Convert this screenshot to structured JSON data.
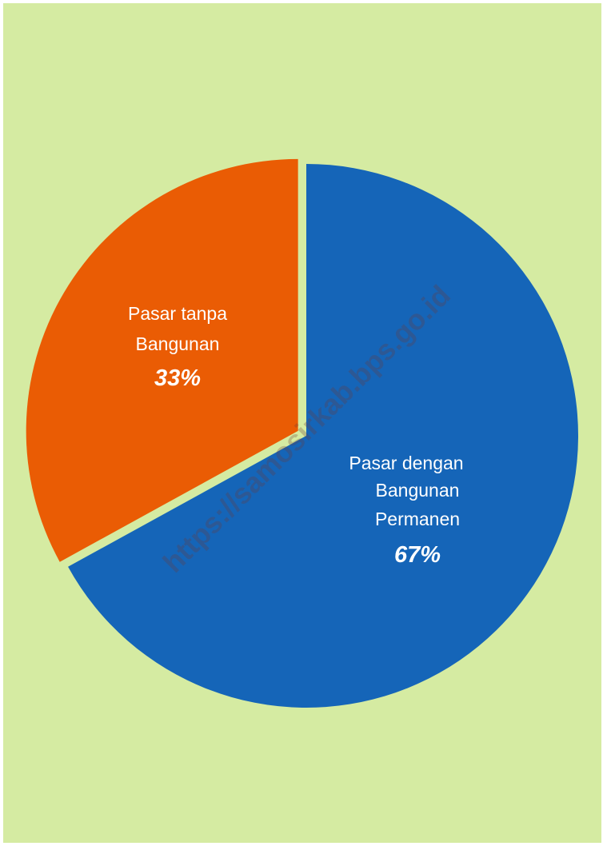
{
  "chart_data": {
    "type": "pie",
    "slices": [
      {
        "label_lines": [
          "Pasar dengan",
          "Bangunan",
          "Permanen"
        ],
        "value": 67,
        "value_label": "67%",
        "color": "#1565b8"
      },
      {
        "label_lines": [
          "Pasar tanpa",
          "Bangunan"
        ],
        "value": 33,
        "value_label": "33%",
        "color": "#ea5c04"
      }
    ],
    "exploded_slice": "Pasar tanpa Bangunan",
    "background_color": "#d5eba2"
  },
  "watermark": {
    "text": "https://samosirkab.bps.go.id"
  }
}
